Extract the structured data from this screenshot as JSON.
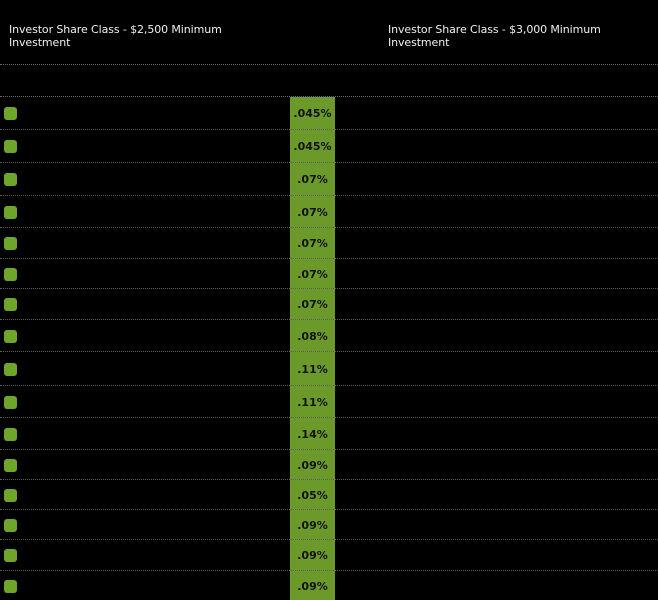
{
  "header": {
    "left_column_title": "Investor Share Class - $2,500 Minimum Investment",
    "right_column_title": "Investor Share Class - $3,000 Minimum Investment"
  },
  "colors": {
    "background": "#000000",
    "highlight": "#6b9a2b",
    "bullet": "#6ea52a",
    "divider": "#6a6a6a"
  },
  "rows": [
    {
      "icon": "green-square-icon",
      "value": ".045%"
    },
    {
      "icon": "green-square-icon",
      "value": ".045%"
    },
    {
      "icon": "green-square-icon",
      "value": ".07%"
    },
    {
      "icon": "green-square-icon",
      "value": ".07%"
    },
    {
      "icon": "green-square-icon",
      "value": ".07%"
    },
    {
      "icon": "green-square-icon",
      "value": ".07%"
    },
    {
      "icon": "green-square-icon",
      "value": ".07%"
    },
    {
      "icon": "green-square-icon",
      "value": ".08%"
    },
    {
      "icon": "green-square-icon",
      "value": ".11%"
    },
    {
      "icon": "green-square-icon",
      "value": ".11%"
    },
    {
      "icon": "green-square-icon",
      "value": ".14%"
    },
    {
      "icon": "green-square-icon",
      "value": ".09%"
    },
    {
      "icon": "green-square-icon",
      "value": ".05%"
    },
    {
      "icon": "green-square-icon",
      "value": ".09%"
    },
    {
      "icon": "green-square-icon",
      "value": ".09%"
    },
    {
      "icon": "green-square-icon",
      "value": ".09%"
    }
  ]
}
